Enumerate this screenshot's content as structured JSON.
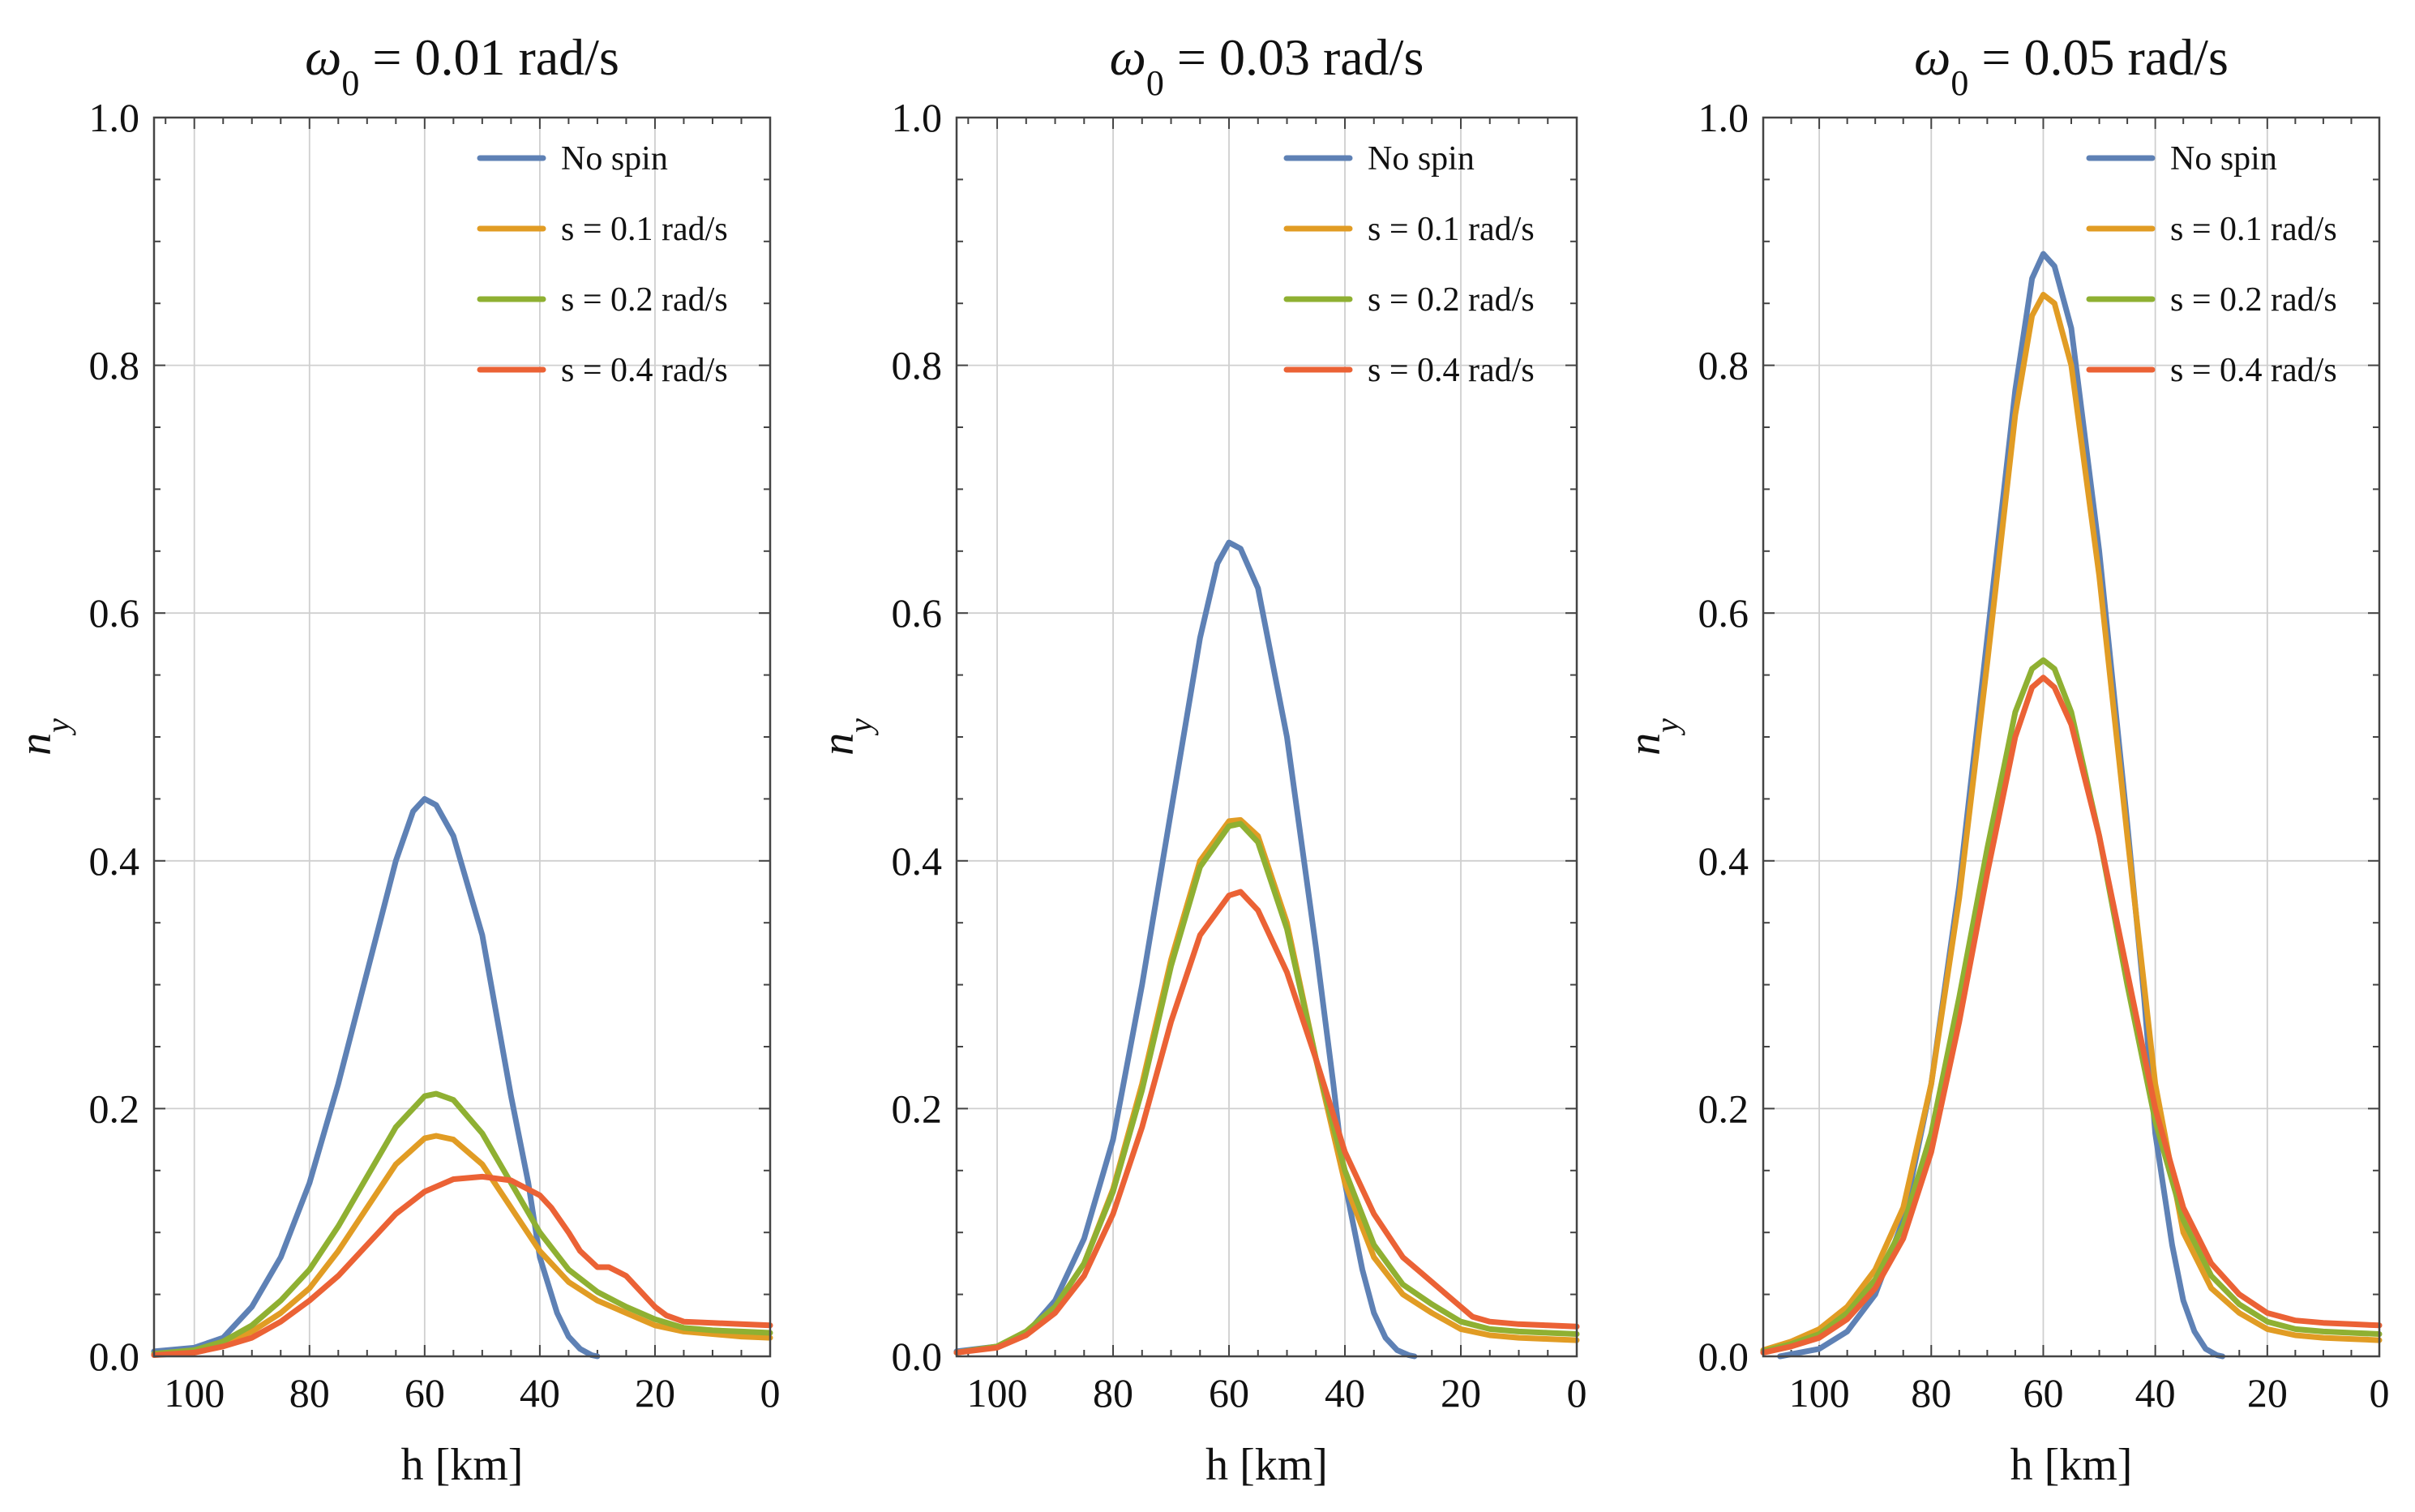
{
  "chart_data": [
    {
      "type": "line",
      "title": {
        "symbol": "ω",
        "sub": "0",
        "rest": " = 0.01 rad/s"
      },
      "xlabel": "h [km]",
      "ylabel": {
        "symbol": "n",
        "sub": "y"
      },
      "xlim": [
        107,
        0
      ],
      "ylim": [
        0,
        1.0
      ],
      "xticks": [
        100,
        80,
        60,
        40,
        20,
        0
      ],
      "yticks": [
        "0.0",
        "0.2",
        "0.4",
        "0.6",
        "0.8",
        "1.0"
      ],
      "grid": true,
      "legend_position": "top-right",
      "series": [
        {
          "name": "No spin",
          "color": "#5e81b5",
          "x": [
            107,
            100,
            95,
            90,
            85,
            80,
            75,
            70,
            65,
            62,
            60,
            58,
            55,
            50,
            45,
            42,
            40,
            37,
            35,
            33,
            31,
            30
          ],
          "y": [
            0.004,
            0.007,
            0.015,
            0.04,
            0.08,
            0.14,
            0.22,
            0.31,
            0.4,
            0.44,
            0.45,
            0.445,
            0.42,
            0.34,
            0.21,
            0.14,
            0.08,
            0.035,
            0.016,
            0.006,
            0.001,
            0.0
          ]
        },
        {
          "name": "s = 0.1 rad/s",
          "color": "#e19c24",
          "x": [
            107,
            100,
            95,
            90,
            85,
            80,
            75,
            70,
            65,
            60,
            58,
            55,
            50,
            45,
            40,
            35,
            30,
            25,
            20,
            15,
            10,
            5,
            0
          ],
          "y": [
            0.002,
            0.004,
            0.01,
            0.02,
            0.035,
            0.055,
            0.085,
            0.12,
            0.155,
            0.176,
            0.178,
            0.175,
            0.155,
            0.12,
            0.085,
            0.06,
            0.045,
            0.035,
            0.025,
            0.02,
            0.018,
            0.016,
            0.015
          ]
        },
        {
          "name": "s = 0.2 rad/s",
          "color": "#8fb032",
          "x": [
            107,
            100,
            95,
            90,
            85,
            80,
            75,
            70,
            65,
            60,
            58,
            55,
            50,
            45,
            40,
            35,
            30,
            25,
            20,
            15,
            10,
            5,
            0
          ],
          "y": [
            0.002,
            0.005,
            0.012,
            0.025,
            0.045,
            0.07,
            0.105,
            0.145,
            0.185,
            0.21,
            0.212,
            0.207,
            0.18,
            0.14,
            0.1,
            0.07,
            0.052,
            0.04,
            0.03,
            0.023,
            0.021,
            0.02,
            0.019
          ]
        },
        {
          "name": "s = 0.4 rad/s",
          "color": "#eb6235",
          "x": [
            107,
            100,
            95,
            90,
            85,
            80,
            75,
            70,
            65,
            60,
            55,
            50,
            45,
            40,
            38,
            35,
            33,
            30,
            28,
            25,
            22,
            20,
            18,
            15,
            10,
            5,
            0
          ],
          "y": [
            0.001,
            0.003,
            0.008,
            0.015,
            0.028,
            0.045,
            0.065,
            0.09,
            0.115,
            0.133,
            0.143,
            0.145,
            0.142,
            0.13,
            0.12,
            0.1,
            0.085,
            0.072,
            0.072,
            0.065,
            0.05,
            0.04,
            0.033,
            0.028,
            0.027,
            0.026,
            0.025
          ]
        }
      ]
    },
    {
      "type": "line",
      "title": {
        "symbol": "ω",
        "sub": "0",
        "rest": " = 0.03 rad/s"
      },
      "xlabel": "h [km]",
      "ylabel": {
        "symbol": "n",
        "sub": "y"
      },
      "xlim": [
        107,
        0
      ],
      "ylim": [
        0,
        1.0
      ],
      "xticks": [
        100,
        80,
        60,
        40,
        20,
        0
      ],
      "yticks": [
        "0.0",
        "0.2",
        "0.4",
        "0.6",
        "0.8",
        "1.0"
      ],
      "grid": true,
      "legend_position": "top-right",
      "series": [
        {
          "name": "No spin",
          "color": "#5e81b5",
          "x": [
            107,
            100,
            95,
            90,
            85,
            80,
            75,
            70,
            65,
            62,
            60,
            58,
            55,
            50,
            45,
            42,
            40,
            37,
            35,
            33,
            31,
            29,
            28
          ],
          "y": [
            0.004,
            0.008,
            0.018,
            0.045,
            0.095,
            0.175,
            0.3,
            0.44,
            0.58,
            0.64,
            0.657,
            0.652,
            0.62,
            0.5,
            0.33,
            0.22,
            0.14,
            0.07,
            0.035,
            0.015,
            0.005,
            0.001,
            0.0
          ]
        },
        {
          "name": "s = 0.1 rad/s",
          "color": "#e19c24",
          "x": [
            107,
            100,
            95,
            90,
            85,
            80,
            75,
            70,
            65,
            60,
            58,
            55,
            50,
            45,
            40,
            35,
            30,
            25,
            20,
            15,
            10,
            5,
            0
          ],
          "y": [
            0.003,
            0.008,
            0.02,
            0.04,
            0.075,
            0.135,
            0.22,
            0.32,
            0.4,
            0.432,
            0.433,
            0.42,
            0.35,
            0.24,
            0.14,
            0.08,
            0.05,
            0.035,
            0.022,
            0.017,
            0.015,
            0.014,
            0.013
          ]
        },
        {
          "name": "s = 0.2 rad/s",
          "color": "#8fb032",
          "x": [
            107,
            100,
            95,
            90,
            85,
            80,
            75,
            70,
            65,
            60,
            58,
            55,
            50,
            45,
            40,
            35,
            30,
            25,
            20,
            15,
            10,
            5,
            0
          ],
          "y": [
            0.003,
            0.008,
            0.02,
            0.04,
            0.075,
            0.133,
            0.215,
            0.315,
            0.395,
            0.428,
            0.43,
            0.415,
            0.345,
            0.24,
            0.15,
            0.09,
            0.058,
            0.042,
            0.028,
            0.022,
            0.02,
            0.019,
            0.018
          ]
        },
        {
          "name": "s = 0.4 rad/s",
          "color": "#eb6235",
          "x": [
            107,
            100,
            95,
            90,
            85,
            80,
            75,
            70,
            65,
            60,
            58,
            55,
            50,
            45,
            40,
            35,
            30,
            27,
            25,
            20,
            18,
            15,
            10,
            5,
            0
          ],
          "y": [
            0.003,
            0.007,
            0.017,
            0.035,
            0.065,
            0.115,
            0.185,
            0.27,
            0.34,
            0.372,
            0.375,
            0.36,
            0.31,
            0.24,
            0.165,
            0.115,
            0.08,
            0.068,
            0.06,
            0.04,
            0.032,
            0.028,
            0.026,
            0.025,
            0.024
          ]
        }
      ]
    },
    {
      "type": "line",
      "title": {
        "symbol": "ω",
        "sub": "0",
        "rest": " = 0.05 rad/s"
      },
      "xlabel": "h [km]",
      "ylabel": {
        "symbol": "n",
        "sub": "y"
      },
      "xlim": [
        110,
        0
      ],
      "ylim": [
        0,
        1.0
      ],
      "xticks": [
        100,
        80,
        60,
        40,
        20,
        0
      ],
      "yticks": [
        "0.0",
        "0.2",
        "0.4",
        "0.6",
        "0.8",
        "1.0"
      ],
      "grid": true,
      "legend_position": "top-right",
      "series": [
        {
          "name": "No spin",
          "color": "#5e81b5",
          "x": [
            107,
            100,
            95,
            90,
            85,
            80,
            75,
            70,
            65,
            62,
            60,
            58,
            55,
            50,
            45,
            42,
            40,
            37,
            35,
            33,
            31,
            29,
            28
          ],
          "y": [
            0.0,
            0.006,
            0.02,
            0.05,
            0.11,
            0.22,
            0.38,
            0.58,
            0.78,
            0.87,
            0.89,
            0.88,
            0.83,
            0.65,
            0.43,
            0.29,
            0.18,
            0.09,
            0.045,
            0.02,
            0.006,
            0.001,
            0.0
          ]
        },
        {
          "name": "s = 0.1 rad/s",
          "color": "#e19c24",
          "x": [
            110,
            105,
            100,
            95,
            90,
            85,
            80,
            75,
            70,
            65,
            62,
            60,
            58,
            55,
            50,
            45,
            40,
            35,
            30,
            25,
            20,
            15,
            10,
            5,
            0
          ],
          "y": [
            0.005,
            0.012,
            0.022,
            0.04,
            0.07,
            0.12,
            0.22,
            0.37,
            0.56,
            0.76,
            0.84,
            0.857,
            0.85,
            0.8,
            0.63,
            0.42,
            0.22,
            0.1,
            0.055,
            0.035,
            0.022,
            0.017,
            0.015,
            0.014,
            0.013
          ]
        },
        {
          "name": "s = 0.2 rad/s",
          "color": "#8fb032",
          "x": [
            110,
            105,
            100,
            95,
            90,
            85,
            80,
            75,
            70,
            65,
            62,
            60,
            58,
            55,
            50,
            45,
            40,
            35,
            30,
            25,
            20,
            15,
            10,
            5,
            0
          ],
          "y": [
            0.004,
            0.01,
            0.018,
            0.035,
            0.062,
            0.105,
            0.18,
            0.29,
            0.41,
            0.52,
            0.555,
            0.562,
            0.555,
            0.52,
            0.42,
            0.3,
            0.19,
            0.11,
            0.065,
            0.042,
            0.028,
            0.022,
            0.02,
            0.019,
            0.018
          ]
        },
        {
          "name": "s = 0.4 rad/s",
          "color": "#eb6235",
          "x": [
            110,
            105,
            100,
            95,
            90,
            85,
            80,
            75,
            70,
            65,
            62,
            60,
            58,
            55,
            50,
            45,
            40,
            35,
            30,
            25,
            20,
            15,
            10,
            5,
            0
          ],
          "y": [
            0.003,
            0.008,
            0.015,
            0.03,
            0.055,
            0.095,
            0.165,
            0.27,
            0.39,
            0.5,
            0.54,
            0.548,
            0.54,
            0.51,
            0.42,
            0.31,
            0.2,
            0.12,
            0.075,
            0.05,
            0.035,
            0.029,
            0.027,
            0.026,
            0.025
          ]
        }
      ]
    }
  ]
}
